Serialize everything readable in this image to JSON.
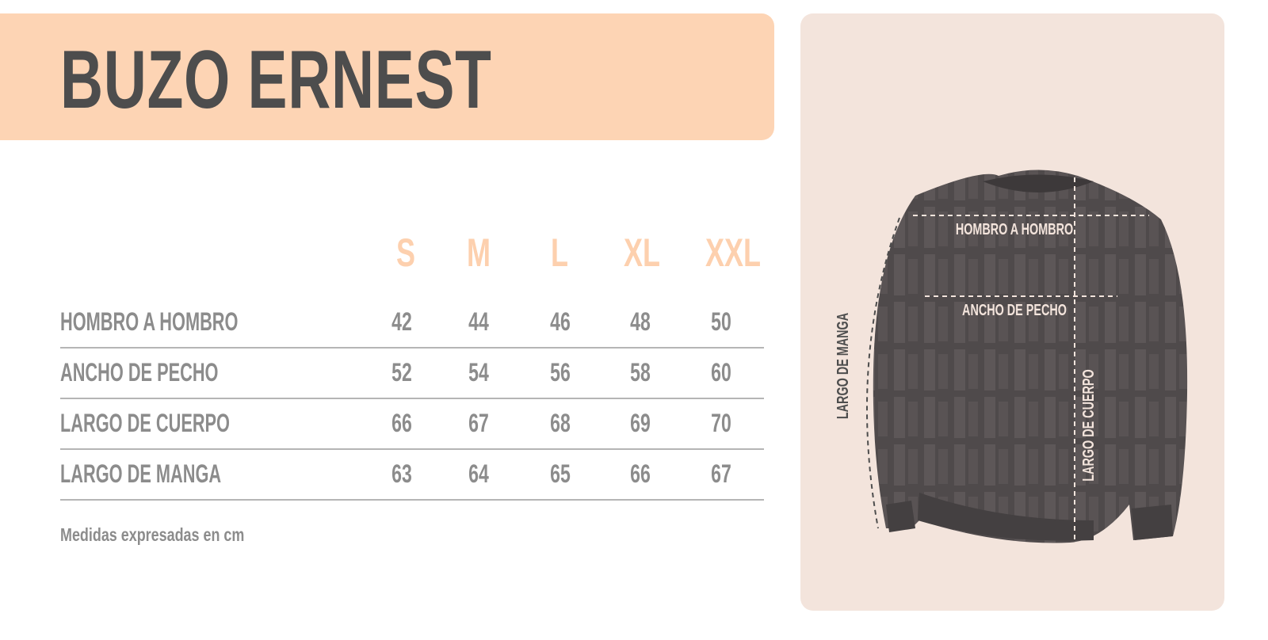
{
  "title": "BUZO ERNEST",
  "sizes": [
    "S",
    "M",
    "L",
    "XL",
    "XXL"
  ],
  "rows": [
    {
      "label": "HOMBRO A HOMBRO",
      "values": [
        "42",
        "44",
        "46",
        "48",
        "50"
      ]
    },
    {
      "label": "ANCHO DE PECHO",
      "values": [
        "52",
        "54",
        "56",
        "58",
        "60"
      ]
    },
    {
      "label": "LARGO DE CUERPO",
      "values": [
        "66",
        "67",
        "68",
        "69",
        "70"
      ]
    },
    {
      "label": "LARGO DE MANGA",
      "values": [
        "63",
        "64",
        "65",
        "66",
        "67"
      ]
    }
  ],
  "note": "Medidas expresadas en cm",
  "diagram": {
    "shoulder": "HOMBRO A HOMBRO",
    "chest": "ANCHO DE PECHO",
    "body_length": "LARGO DE CUERPO",
    "sleeve_length": "LARGO DE MANGA"
  },
  "colors": {
    "header_bg": "#fdd4b4",
    "panel_bg": "#f3e4dc",
    "title": "#4d4d4d",
    "size_header": "#fdd0ae",
    "text": "#8c8c8c",
    "garment": "#4f4a4b"
  }
}
